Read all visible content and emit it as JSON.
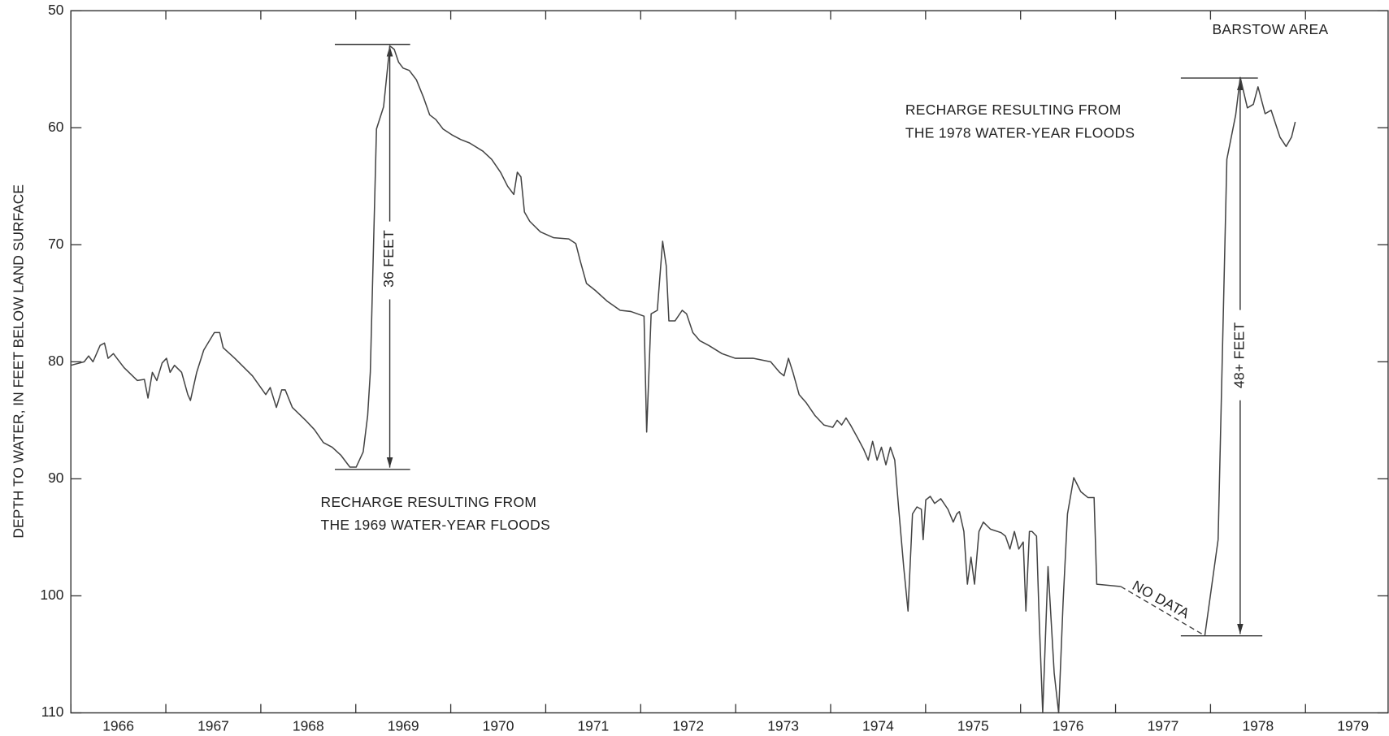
{
  "chart_data": {
    "type": "line",
    "ylabel": "DEPTH TO WATER, IN FEET BELOW LAND SURFACE",
    "annotations": {
      "area": "BARSTOW AREA",
      "recharge_1969": [
        "RECHARGE RESULTING FROM",
        "THE 1969 WATER-YEAR FLOODS"
      ],
      "recharge_1978": [
        "RECHARGE RESULTING FROM",
        "THE 1978 WATER-YEAR FLOODS"
      ],
      "rise_1969": "36 FEET",
      "rise_1978": "48+ FEET",
      "gap": "NO DATA"
    },
    "xlim": [
      1966,
      1979.87
    ],
    "xticks": [
      1966,
      1967,
      1968,
      1969,
      1970,
      1971,
      1972,
      1973,
      1974,
      1975,
      1976,
      1977,
      1978,
      1979
    ],
    "ylim": [
      50,
      110
    ],
    "yticks": [
      50,
      60,
      70,
      80,
      90,
      100,
      110
    ],
    "y_inverted": true,
    "grid": false,
    "color": "#444444",
    "x": [
      1966.0,
      1966.14,
      1966.187,
      1966.233,
      1966.308,
      1966.354,
      1966.392,
      1966.448,
      1966.485,
      1966.56,
      1966.7,
      1966.774,
      1966.812,
      1966.858,
      1966.905,
      1966.961,
      1967.007,
      1967.045,
      1967.091,
      1967.166,
      1967.231,
      1967.259,
      1967.325,
      1967.399,
      1967.511,
      1967.567,
      1967.604,
      1967.726,
      1967.912,
      1968.052,
      1968.099,
      1968.164,
      1968.22,
      1968.257,
      1968.332,
      1968.472,
      1968.565,
      1968.659,
      1968.752,
      1968.845,
      1968.938,
      1969.004,
      1969.078,
      1969.125,
      1969.153,
      1969.218,
      1969.293,
      1969.358,
      1969.405,
      1969.451,
      1969.498,
      1969.563,
      1969.638,
      1969.713,
      1969.778,
      1969.843,
      1969.918,
      1970.011,
      1970.104,
      1970.198,
      1970.338,
      1970.431,
      1970.524,
      1970.599,
      1970.664,
      1970.701,
      1970.739,
      1970.776,
      1970.832,
      1970.944,
      1971.084,
      1971.243,
      1971.317,
      1971.364,
      1971.429,
      1971.522,
      1971.644,
      1971.784,
      1971.896,
      1972.035,
      1972.063,
      1972.11,
      1972.175,
      1972.231,
      1972.269,
      1972.297,
      1972.362,
      1972.437,
      1972.483,
      1972.549,
      1972.623,
      1972.716,
      1972.856,
      1972.996,
      1973.183,
      1973.369,
      1973.463,
      1973.509,
      1973.556,
      1973.603,
      1973.668,
      1973.743,
      1973.836,
      1973.929,
      1974.022,
      1974.069,
      1974.116,
      1974.162,
      1974.209,
      1974.284,
      1974.349,
      1974.396,
      1974.442,
      1974.489,
      1974.535,
      1974.582,
      1974.629,
      1974.675,
      1974.713,
      1974.769,
      1974.815,
      1974.862,
      1974.909,
      1974.955,
      1974.974,
      1975.002,
      1975.049,
      1975.095,
      1975.16,
      1975.235,
      1975.291,
      1975.328,
      1975.356,
      1975.403,
      1975.44,
      1975.478,
      1975.515,
      1975.562,
      1975.608,
      1975.683,
      1975.795,
      1975.841,
      1975.888,
      1975.935,
      1975.981,
      1976.028,
      1976.056,
      1976.093,
      1976.121,
      1976.168,
      1976.196,
      1976.233,
      1976.289,
      1976.354,
      1976.401,
      1976.448,
      1976.494,
      1976.56,
      1976.634,
      1976.709,
      1976.774,
      1976.802,
      1977.054,
      null,
      1977.94,
      1978.08,
      1978.172,
      1978.265,
      1978.313,
      1978.388,
      1978.451,
      1978.5,
      1978.575,
      1978.638,
      1978.731,
      1978.796,
      1978.853,
      1978.892
    ],
    "values": [
      80.3,
      80.0,
      79.5,
      80.0,
      78.6,
      78.4,
      79.7,
      79.3,
      79.7,
      80.5,
      81.6,
      81.5,
      83.1,
      80.9,
      81.6,
      80.1,
      79.7,
      80.9,
      80.3,
      80.9,
      82.8,
      83.3,
      80.9,
      79.0,
      77.5,
      77.5,
      78.8,
      79.7,
      81.2,
      82.8,
      82.2,
      83.9,
      82.4,
      82.4,
      83.9,
      85.0,
      85.8,
      86.9,
      87.3,
      88.0,
      89.0,
      89.0,
      87.7,
      84.6,
      80.9,
      60.1,
      58.2,
      53.0,
      53.3,
      54.4,
      54.9,
      55.1,
      55.9,
      57.4,
      58.9,
      59.3,
      60.1,
      60.6,
      61.0,
      61.3,
      62.0,
      62.7,
      63.8,
      65.0,
      65.7,
      63.8,
      64.2,
      67.2,
      68.0,
      68.9,
      69.4,
      69.5,
      69.9,
      71.4,
      73.3,
      73.9,
      74.8,
      75.6,
      75.7,
      76.1,
      86.0,
      75.9,
      75.6,
      69.7,
      71.8,
      76.5,
      76.5,
      75.6,
      75.9,
      77.5,
      78.2,
      78.6,
      79.3,
      79.7,
      79.7,
      80.0,
      80.9,
      81.2,
      79.7,
      80.9,
      82.8,
      83.5,
      84.6,
      85.4,
      85.6,
      85.0,
      85.4,
      84.8,
      85.4,
      86.5,
      87.5,
      88.4,
      86.8,
      88.4,
      87.3,
      88.8,
      87.3,
      88.4,
      92.2,
      97.5,
      101.3,
      93.0,
      92.4,
      92.6,
      95.2,
      91.8,
      91.5,
      92.1,
      91.7,
      92.6,
      93.7,
      93.0,
      92.8,
      94.5,
      99.0,
      96.7,
      99.0,
      94.5,
      93.7,
      94.3,
      94.6,
      94.9,
      96.0,
      94.5,
      96.0,
      95.4,
      101.3,
      94.5,
      94.5,
      94.9,
      102.0,
      110.0,
      97.5,
      106.6,
      110.0,
      100.5,
      93.0,
      89.9,
      91.1,
      91.6,
      91.6,
      99.0,
      99.2,
      null,
      103.4,
      95.2,
      62.7,
      58.9,
      55.7,
      58.3,
      58.0,
      56.5,
      58.8,
      58.5,
      60.8,
      61.6,
      60.8,
      59.5
    ]
  }
}
